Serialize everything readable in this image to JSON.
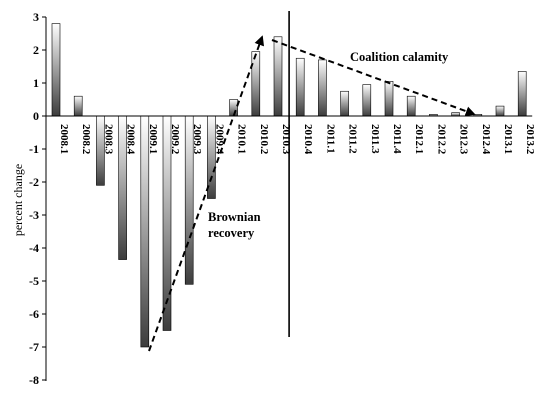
{
  "chart_data": {
    "type": "bar",
    "title": "",
    "xlabel": "",
    "ylabel": "percent change",
    "ylim": [
      -8,
      3
    ],
    "yticks": [
      3,
      2,
      1,
      0,
      -1,
      -2,
      -3,
      -4,
      -5,
      -6,
      -7,
      -8
    ],
    "categories": [
      "2008.1",
      "2008.2",
      "2008.3",
      "2008.4",
      "2009.1",
      "2009.2",
      "2009.3",
      "2009.4",
      "2010.1",
      "2010.2",
      "2010.3",
      "2010.4",
      "2011.1",
      "2011.2",
      "2011.3",
      "2011.4",
      "2012.1",
      "2012.2",
      "2012.3",
      "2012.4",
      "2013.1",
      "2013.2"
    ],
    "values": [
      2.8,
      0.6,
      -2.1,
      -4.35,
      -7.0,
      -6.5,
      -5.1,
      -2.5,
      0.5,
      1.95,
      2.4,
      1.75,
      1.7,
      0.75,
      0.95,
      1.05,
      0.6,
      0.05,
      0.1,
      0.05,
      0.3,
      1.35
    ],
    "grid": false,
    "legend": "none",
    "annotations": [
      {
        "text": "Brownian recovery",
        "lines": [
          "Brownian",
          "recovery"
        ]
      },
      {
        "text": "Coalition calamity"
      }
    ],
    "colors": {
      "bar_dark": "#3c3c3c",
      "bar_light": "#ffffff",
      "axis": "#000000"
    }
  }
}
